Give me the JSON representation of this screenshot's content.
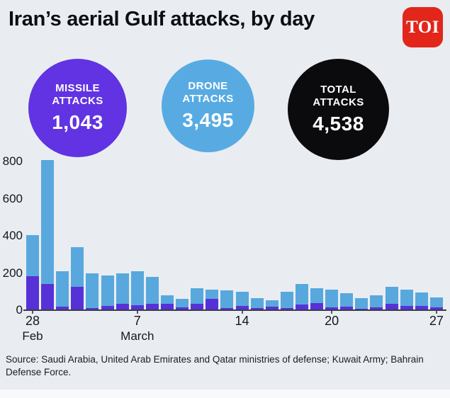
{
  "header": {
    "title": "Iran’s aerial Gulf attacks, by day",
    "logo_text": "TOI",
    "logo_color": "#e2261a"
  },
  "stats": [
    {
      "label": "MISSILE ATTACKS",
      "value": "1,043",
      "color": "#6133e2"
    },
    {
      "label": "DRONE ATTACKS",
      "value": "3,495",
      "color": "#58abe2"
    },
    {
      "label": "TOTAL ATTACKS",
      "value": "4,538",
      "color": "#0b0b0d"
    }
  ],
  "chart_data": {
    "type": "bar",
    "stacked": true,
    "title": "Iran’s aerial Gulf attacks, by day",
    "x": [
      "Feb 28",
      "Mar 1",
      "Mar 2",
      "Mar 3",
      "Mar 4",
      "Mar 5",
      "Mar 6",
      "Mar 7",
      "Mar 8",
      "Mar 9",
      "Mar 10",
      "Mar 11",
      "Mar 12",
      "Mar 13",
      "Mar 14",
      "Mar 15",
      "Mar 16",
      "Mar 17",
      "Mar 18",
      "Mar 19",
      "Mar 20",
      "Mar 21",
      "Mar 22",
      "Mar 23",
      "Mar 24",
      "Mar 25",
      "Mar 26",
      "Mar 27"
    ],
    "series": [
      {
        "name": "Missile attacks",
        "color": "#5731d8",
        "values": [
          183,
          140,
          18,
          125,
          13,
          23,
          33,
          28,
          33,
          33,
          15,
          33,
          60,
          13,
          23,
          11,
          21,
          13,
          29,
          38,
          16,
          19,
          8,
          16,
          34,
          24,
          24,
          17
        ]
      },
      {
        "name": "Drone attacks",
        "color": "#58a8de",
        "values": [
          222,
          668,
          192,
          215,
          187,
          162,
          167,
          182,
          147,
          47,
          45,
          87,
          50,
          92,
          77,
          54,
          34,
          87,
          111,
          82,
          94,
          71,
          57,
          64,
          91,
          86,
          71,
          53
        ]
      }
    ],
    "ylim": [
      0,
      800
    ],
    "yticks": [
      0,
      200,
      400,
      600,
      800
    ],
    "xticks": [
      {
        "index": 0,
        "label": "28",
        "sub": "Feb"
      },
      {
        "index": 7,
        "label": "7",
        "sub": "March"
      },
      {
        "index": 14,
        "label": "14",
        "sub": ""
      },
      {
        "index": 20,
        "label": "20",
        "sub": ""
      },
      {
        "index": 27,
        "label": "27",
        "sub": ""
      }
    ],
    "grid": false,
    "legend": false
  },
  "source": "Source: Saudi Arabia, United Arab Emirates and Qatar ministries of defense; Kuwait Army; Bahrain Defense Force."
}
